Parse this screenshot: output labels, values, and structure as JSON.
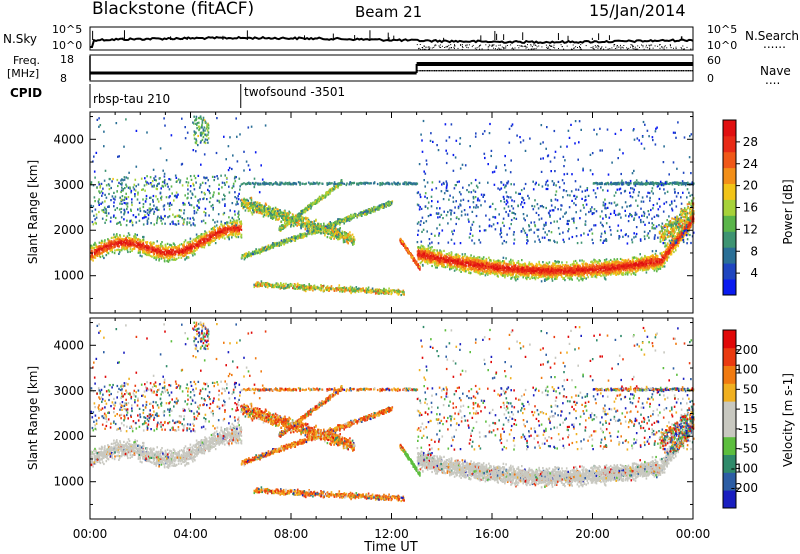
{
  "header": {
    "station": "Blackstone (fitACF)",
    "beam": "Beam 21",
    "date": "15/Jan/2014"
  },
  "left_labels": {
    "nsky": "N.Sky",
    "freq_line1": "Freq.",
    "freq_line2": "[MHz]",
    "cpid": "CPID"
  },
  "right_labels": {
    "nsearch": "N.Search",
    "nave": "Nave",
    "dots": "......",
    "dots_short": "...."
  },
  "noise_panel": {
    "left_ticks": [
      "10^5",
      "10^0"
    ],
    "right_ticks": [
      "10^5",
      "10^0"
    ]
  },
  "freq_panel": {
    "left_ticks": [
      "18",
      "8"
    ],
    "right_ticks": [
      "60",
      "0"
    ]
  },
  "cpid_panel": {
    "segments": [
      "rbsp-tau 210",
      "twofsound -3501"
    ],
    "switch_hour": 6
  },
  "chart_data": [
    {
      "type": "heatmap",
      "name": "Power",
      "xlabel": "Time UT",
      "ylabel": "Slant Range [km]",
      "xticks": [
        "00:00",
        "04:00",
        "08:00",
        "12:00",
        "16:00",
        "20:00",
        "00:00"
      ],
      "xlim": [
        0,
        24
      ],
      "ylim": [
        180,
        4600
      ],
      "yticks": [
        1000,
        2000,
        3000,
        4000
      ],
      "colorbar": {
        "label": "Power [dB]",
        "ticks": [
          "4",
          "8",
          "12",
          "16",
          "20",
          "24",
          "28"
        ],
        "colors": [
          "#0a1bf0",
          "#1f45c0",
          "#2a6f96",
          "#3e9472",
          "#5ab54a",
          "#a7d23a",
          "#f2c418",
          "#f38f18",
          "#f05818",
          "#e82a16",
          "#e00f10"
        ]
      }
    },
    {
      "type": "heatmap",
      "name": "Velocity",
      "xlabel": "Time UT",
      "ylabel": "Slant Range [km]",
      "xticks": [
        "00:00",
        "04:00",
        "08:00",
        "12:00",
        "16:00",
        "20:00",
        "00:00"
      ],
      "xlim": [
        0,
        24
      ],
      "ylim": [
        180,
        4600
      ],
      "yticks": [
        1000,
        2000,
        3000,
        4000
      ],
      "colorbar": {
        "label": "Velocity [m s-1]",
        "ticks": [
          "200",
          "100",
          "50",
          "15",
          "-15",
          "-50",
          "-100",
          "-200"
        ],
        "colors": [
          "#1a1fc0",
          "#2c5da4",
          "#2f8a6a",
          "#5cbe3e",
          "#c8c8c0",
          "#c8c8c0",
          "#f0b020",
          "#f07a10",
          "#ea3a10",
          "#e00808"
        ]
      }
    }
  ]
}
